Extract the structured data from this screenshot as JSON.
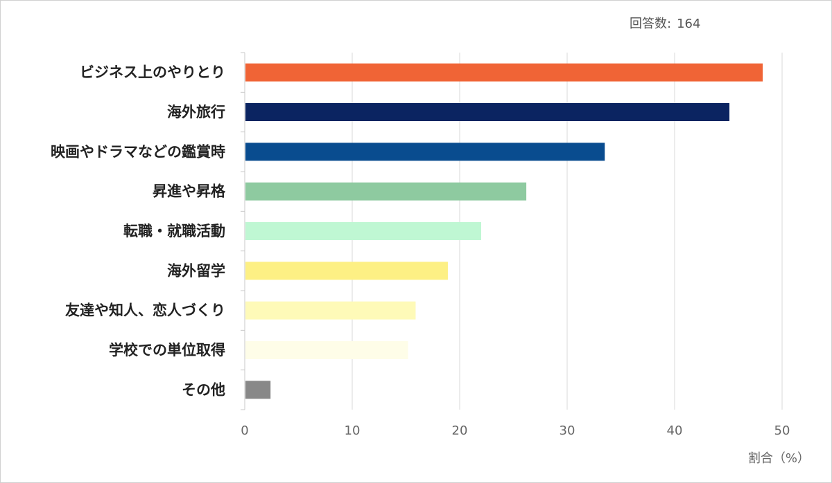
{
  "header": {
    "respondents_label": "回答数:",
    "respondents_value": "164"
  },
  "chart_data": {
    "type": "bar",
    "orientation": "horizontal",
    "categories": [
      "ビジネス上のやりとり",
      "海外旅行",
      "映画やドラマなどの鑑賞時",
      "昇進や昇格",
      "転職・就職活動",
      "海外留学",
      "友達や知人、恋人づくり",
      "学校での単位取得",
      "その他"
    ],
    "values": [
      48.2,
      45.1,
      33.5,
      26.2,
      22.0,
      18.9,
      15.9,
      15.2,
      2.4
    ],
    "colors": [
      "#f06436",
      "#0b2461",
      "#094c8f",
      "#8ecaa0",
      "#bff7d3",
      "#fdf084",
      "#fefab8",
      "#fefde8",
      "#888888"
    ],
    "xlabel": "割合（%）",
    "ylabel": "",
    "xlim": [
      0,
      50
    ],
    "xticks": [
      0,
      10,
      20,
      30,
      40,
      50
    ],
    "grid": "vertical"
  }
}
